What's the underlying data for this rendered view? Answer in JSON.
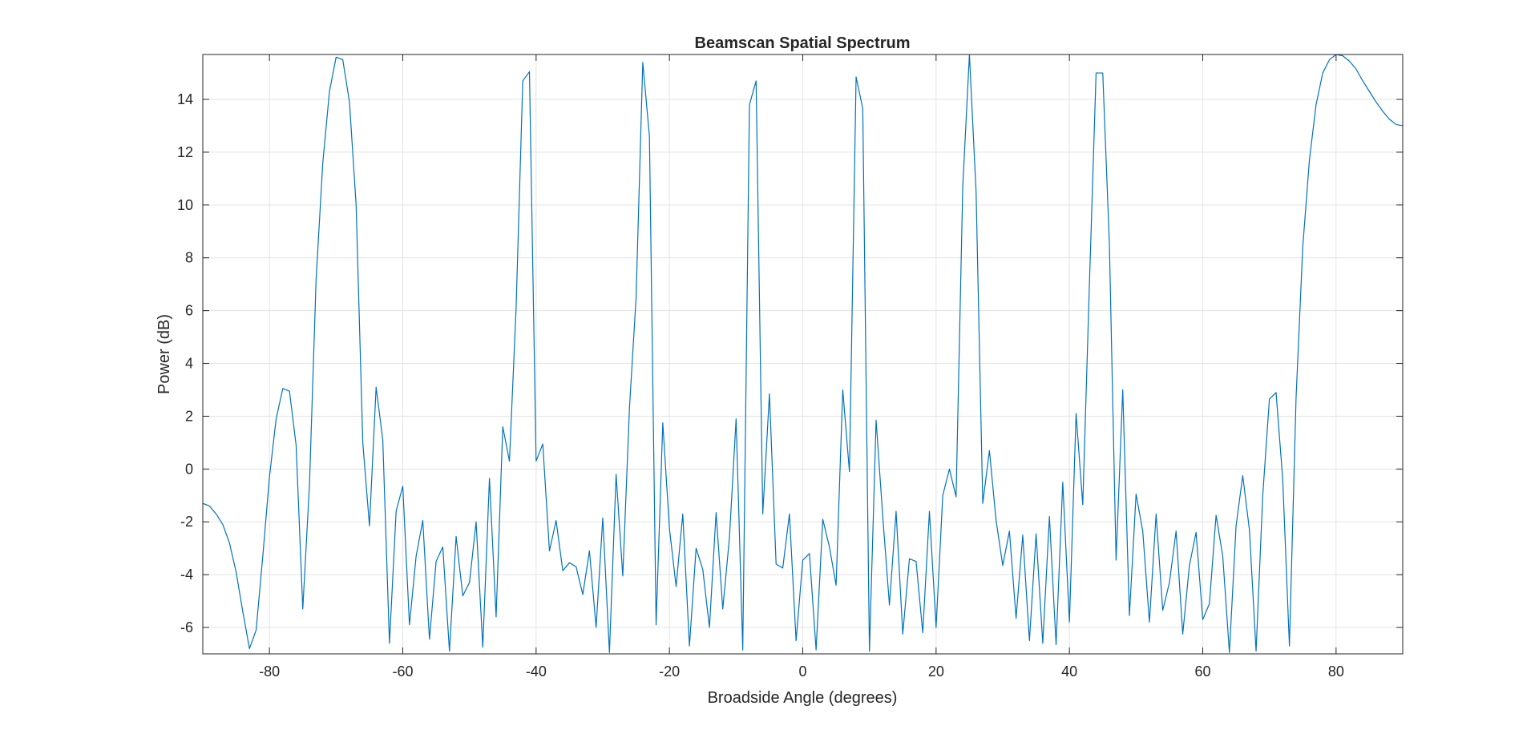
{
  "chart_data": {
    "type": "line",
    "title": "Beamscan Spatial Spectrum",
    "xlabel": "Broadside Angle (degrees)",
    "ylabel": "Power (dB)",
    "xlim": [
      -90,
      90
    ],
    "ylim": [
      -7,
      15.7
    ],
    "grid": true,
    "x_ticks": [
      -80,
      -60,
      -40,
      -20,
      0,
      20,
      40,
      60,
      80
    ],
    "x_tick_labels": [
      "-80",
      "-60",
      "-40",
      "-20",
      "0",
      "20",
      "40",
      "60",
      "80"
    ],
    "y_ticks": [
      -6,
      -4,
      -2,
      0,
      2,
      4,
      6,
      8,
      10,
      12,
      14
    ],
    "y_tick_labels": [
      "-6",
      "-4",
      "-2",
      "0",
      "2",
      "4",
      "6",
      "8",
      "10",
      "12",
      "14"
    ],
    "series": [
      {
        "color": "#0072BD",
        "x": [
          -90,
          -89,
          -88,
          -87,
          -86,
          -85,
          -84,
          -83,
          -82,
          -81,
          -80,
          -79,
          -78,
          -77,
          -76,
          -75,
          -74,
          -73,
          -72,
          -71,
          -70,
          -69,
          -68,
          -67,
          -66,
          -65,
          -64,
          -63,
          -62,
          -61,
          -60,
          -59,
          -58,
          -57,
          -56,
          -55,
          -54,
          -53,
          -52,
          -51,
          -50,
          -49,
          -48,
          -47,
          -46,
          -45,
          -44,
          -43,
          -42,
          -41,
          -40,
          -39,
          -38,
          -37,
          -36,
          -35,
          -34,
          -33,
          -32,
          -31,
          -30,
          -29,
          -28,
          -27,
          -26,
          -25,
          -24,
          -23,
          -22,
          -21,
          -20,
          -19,
          -18,
          -17,
          -16,
          -15,
          -14,
          -13,
          -12,
          -11,
          -10,
          -9,
          -8,
          -7,
          -6,
          -5,
          -4,
          -3,
          -2,
          -1,
          0,
          1,
          2,
          3,
          4,
          5,
          6,
          7,
          8,
          9,
          10,
          11,
          12,
          13,
          14,
          15,
          16,
          17,
          18,
          19,
          20,
          21,
          22,
          23,
          24,
          25,
          26,
          27,
          28,
          29,
          30,
          31,
          32,
          33,
          34,
          35,
          36,
          37,
          38,
          39,
          40,
          41,
          42,
          43,
          44,
          45,
          46,
          47,
          48,
          49,
          50,
          51,
          52,
          53,
          54,
          55,
          56,
          57,
          58,
          59,
          60,
          61,
          62,
          63,
          64,
          65,
          66,
          67,
          68,
          69,
          70,
          71,
          72,
          73,
          74,
          75,
          76,
          77,
          78,
          79,
          80,
          81,
          82,
          83,
          84,
          85,
          86,
          87,
          88,
          89,
          90
        ],
        "values": [
          -1.3,
          -1.4,
          -1.7,
          -2.1,
          -2.8,
          -3.9,
          -5.4,
          -6.8,
          -6.1,
          -3.3,
          -0.3,
          1.9,
          3.05,
          2.95,
          0.9,
          -5.3,
          -0.6,
          7.2,
          11.6,
          14.3,
          15.6,
          15.5,
          13.9,
          10.0,
          1.0,
          -2.15,
          3.1,
          1.1,
          -6.6,
          -1.6,
          -0.65,
          -5.9,
          -3.3,
          -1.95,
          -6.45,
          -3.5,
          -2.95,
          -6.9,
          -2.55,
          -4.8,
          -4.3,
          -2.0,
          -6.75,
          -0.35,
          -5.6,
          1.6,
          0.3,
          6.1,
          14.7,
          15.05,
          0.3,
          0.95,
          -3.1,
          -1.95,
          -3.85,
          -3.55,
          -3.7,
          -4.75,
          -3.1,
          -6.0,
          -1.85,
          -6.95,
          -0.2,
          -4.05,
          2.3,
          6.5,
          15.4,
          12.6,
          -5.9,
          1.75,
          -2.25,
          -4.45,
          -1.7,
          -6.7,
          -3.0,
          -3.8,
          -6.0,
          -1.65,
          -5.3,
          -2.6,
          1.9,
          -6.85,
          13.8,
          14.7,
          -1.7,
          2.85,
          -3.6,
          -3.75,
          -1.7,
          -6.5,
          -3.45,
          -3.2,
          -6.85,
          -1.9,
          -2.95,
          -4.4,
          3.0,
          -0.1,
          14.85,
          13.65,
          -6.9,
          1.85,
          -1.8,
          -5.15,
          -1.6,
          -6.25,
          -3.4,
          -3.5,
          -6.2,
          -1.6,
          -6.0,
          -1.0,
          0.0,
          -1.05,
          10.7,
          15.7,
          10.5,
          -1.3,
          0.7,
          -1.95,
          -3.65,
          -2.35,
          -5.65,
          -2.5,
          -6.5,
          -2.45,
          -6.6,
          -1.8,
          -6.65,
          -0.5,
          -5.8,
          2.1,
          -1.35,
          7.0,
          15.0,
          15.0,
          8.5,
          -3.45,
          3.0,
          -5.55,
          -0.95,
          -2.35,
          -5.8,
          -1.7,
          -5.35,
          -4.3,
          -2.35,
          -6.25,
          -3.65,
          -2.4,
          -5.7,
          -5.1,
          -1.75,
          -3.3,
          -6.95,
          -2.15,
          -0.25,
          -2.3,
          -6.9,
          -1.0,
          2.65,
          2.9,
          -0.4,
          -6.7,
          2.7,
          8.4,
          11.7,
          13.8,
          15.0,
          15.5,
          15.7,
          15.65,
          15.45,
          15.15,
          14.7,
          14.3,
          13.9,
          13.55,
          13.25,
          13.05,
          13.0
        ]
      }
    ]
  }
}
